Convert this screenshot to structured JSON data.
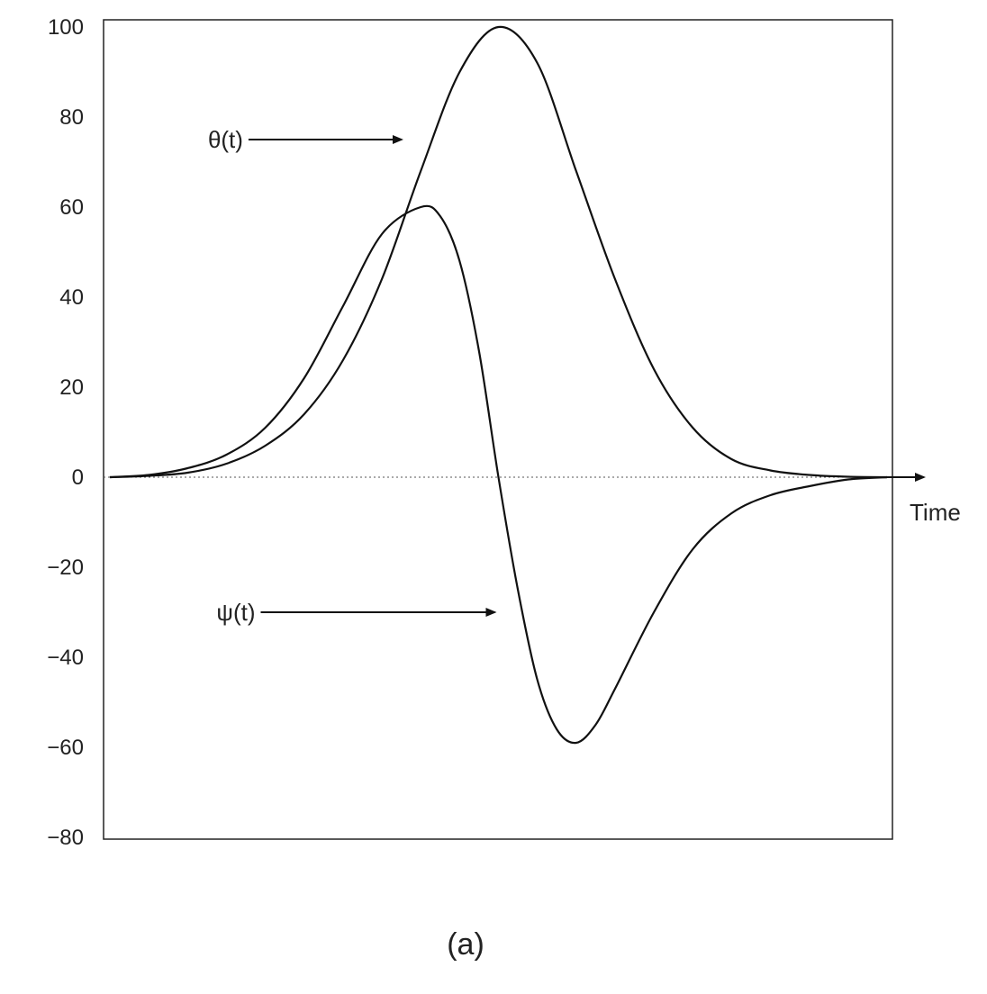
{
  "chart_data": {
    "type": "line",
    "title": "",
    "xlabel": "Time",
    "ylabel": "",
    "caption": "(a)",
    "xlim": [
      0,
      10
    ],
    "ylim": [
      -80,
      100
    ],
    "yticks": [
      100,
      80,
      60,
      40,
      20,
      0,
      -20,
      -40,
      -60,
      -80
    ],
    "ytick_labels": [
      "100",
      "80",
      "60",
      "40",
      "20",
      "0",
      "−20",
      "−40",
      "−60",
      "−80"
    ],
    "grid": false,
    "zero_line": "dotted",
    "series": [
      {
        "name": "θ(t)",
        "x": [
          0,
          0.5,
          1,
          1.5,
          2,
          2.5,
          3,
          3.5,
          4,
          4.5,
          5,
          5.5,
          6,
          6.5,
          7,
          7.5,
          8,
          8.5,
          9,
          9.5,
          10
        ],
        "y": [
          0,
          0.3,
          1,
          3,
          7,
          14,
          26,
          44,
          68,
          90,
          100,
          92,
          68,
          44,
          24,
          11,
          4,
          1.5,
          0.5,
          0.1,
          0
        ]
      },
      {
        "name": "ψ(t)",
        "x": [
          0,
          0.5,
          1,
          1.5,
          2,
          2.5,
          3,
          3.5,
          4,
          4.25,
          4.5,
          4.75,
          5,
          5.25,
          5.5,
          5.75,
          6,
          6.25,
          6.5,
          7,
          7.5,
          8,
          8.5,
          9,
          9.5,
          10
        ],
        "y": [
          0,
          0.5,
          2,
          5,
          11,
          22,
          38,
          54,
          60,
          58,
          48,
          28,
          0,
          -25,
          -45,
          -56,
          -59,
          -55,
          -47,
          -30,
          -16,
          -8,
          -4,
          -2,
          -0.5,
          0
        ]
      }
    ],
    "annotations": [
      {
        "text": "θ(t)",
        "points_to_x": 3.8,
        "points_to_y": 75
      },
      {
        "text": "ψ(t)",
        "points_to_x": 5,
        "points_to_y": -30
      }
    ]
  }
}
